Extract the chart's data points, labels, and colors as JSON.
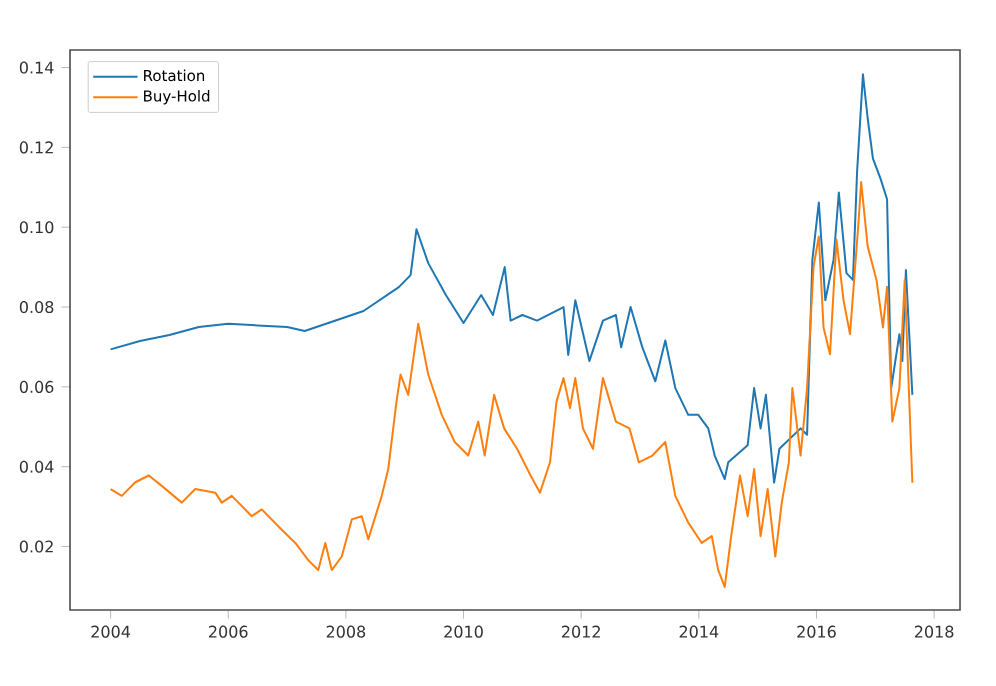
{
  "chart_data": {
    "type": "line",
    "xlim": [
      2003.31,
      2018.44
    ],
    "ylim": [
      0.0041,
      0.1444
    ],
    "xticks": [
      2004,
      2006,
      2008,
      2010,
      2012,
      2014,
      2016,
      2018
    ],
    "yticks": [
      0.02,
      0.04,
      0.06,
      0.08,
      {
        "value": 0.1,
        "label": "0.10"
      },
      0.12,
      0.14
    ],
    "legend": "top left",
    "grid": false,
    "series": [
      {
        "name": "Rotation",
        "color": "#1f77b4",
        "x": [
          2004.0,
          2004.5,
          2005.0,
          2005.5,
          2006.0,
          2006.5,
          2007.0,
          2007.3,
          2008.0,
          2008.3,
          2008.9,
          2009.1,
          2009.2,
          2009.4,
          2009.7,
          2010.0,
          2010.3,
          2010.5,
          2010.7,
          2010.8,
          2011.0,
          2011.25,
          2011.7,
          2011.78,
          2011.9,
          2012.14,
          2012.37,
          2012.59,
          2012.68,
          2012.84,
          2013.04,
          2013.26,
          2013.43,
          2013.6,
          2013.82,
          2013.99,
          2014.16,
          2014.27,
          2014.44,
          2014.5,
          2014.83,
          2014.94,
          2015.05,
          2015.14,
          2015.28,
          2015.37,
          2015.73,
          2015.84,
          2015.93,
          2016.04,
          2016.15,
          2016.29,
          2016.38,
          2016.51,
          2016.62,
          2016.69,
          2016.79,
          2016.87,
          2016.96,
          2017.09,
          2017.2,
          2017.27,
          2017.41,
          2017.46,
          2017.52,
          2017.63
        ],
        "values": [
          0.0694,
          0.0715,
          0.073,
          0.075,
          0.0758,
          0.0754,
          0.075,
          0.074,
          0.0775,
          0.079,
          0.085,
          0.088,
          0.0995,
          0.091,
          0.083,
          0.076,
          0.083,
          0.078,
          0.09,
          0.0766,
          0.078,
          0.0766,
          0.08,
          0.068,
          0.0817,
          0.0665,
          0.0766,
          0.078,
          0.0699,
          0.08,
          0.0699,
          0.0614,
          0.0716,
          0.0597,
          0.053,
          0.053,
          0.0496,
          0.0428,
          0.0369,
          0.0411,
          0.0454,
          0.0597,
          0.0496,
          0.058,
          0.036,
          0.0445,
          0.0496,
          0.048,
          0.0918,
          0.1062,
          0.0817,
          0.0918,
          0.1087,
          0.0885,
          0.0868,
          0.1138,
          0.1383,
          0.1273,
          0.1172,
          0.1121,
          0.107,
          0.0597,
          0.0732,
          0.0665,
          0.0893,
          0.058
        ]
      },
      {
        "name": "Buy-Hold",
        "color": "#ff7f0e",
        "x": [
          2004.0,
          2004.19,
          2004.42,
          2004.65,
          2004.87,
          2005.21,
          2005.44,
          2005.78,
          2005.89,
          2006.06,
          2006.4,
          2006.57,
          2006.91,
          2007.14,
          2007.36,
          2007.53,
          2007.65,
          2007.76,
          2007.93,
          2008.1,
          2008.27,
          2008.38,
          2008.61,
          2008.72,
          2008.86,
          2008.93,
          2009.06,
          2009.23,
          2009.4,
          2009.63,
          2009.85,
          2010.08,
          2010.25,
          2010.36,
          2010.52,
          2010.69,
          2010.91,
          2011.14,
          2011.3,
          2011.47,
          2011.58,
          2011.7,
          2011.81,
          2011.9,
          2012.03,
          2012.2,
          2012.37,
          2012.59,
          2012.82,
          2012.98,
          2013.21,
          2013.43,
          2013.6,
          2013.82,
          2014.05,
          2014.22,
          2014.33,
          2014.44,
          2014.55,
          2014.7,
          2014.83,
          2014.94,
          2015.05,
          2015.17,
          2015.3,
          2015.41,
          2015.53,
          2015.59,
          2015.73,
          2015.84,
          2015.95,
          2016.04,
          2016.12,
          2016.23,
          2016.34,
          2016.46,
          2016.57,
          2016.71,
          2016.76,
          2016.87,
          2017.02,
          2017.13,
          2017.2,
          2017.29,
          2017.41,
          2017.5,
          2017.63
        ],
        "values": [
          0.0344,
          0.0327,
          0.0361,
          0.0378,
          0.0352,
          0.031,
          0.0344,
          0.0335,
          0.031,
          0.0327,
          0.0276,
          0.0293,
          0.0242,
          0.0209,
          0.0166,
          0.0141,
          0.0209,
          0.0141,
          0.0175,
          0.0268,
          0.0276,
          0.0218,
          0.0327,
          0.0394,
          0.0563,
          0.0631,
          0.058,
          0.0758,
          0.0631,
          0.053,
          0.0462,
          0.0428,
          0.0513,
          0.0428,
          0.058,
          0.0496,
          0.0445,
          0.0378,
          0.0335,
          0.0411,
          0.0563,
          0.0622,
          0.0547,
          0.0622,
          0.0496,
          0.0445,
          0.0622,
          0.0513,
          0.0496,
          0.0411,
          0.0428,
          0.0462,
          0.0327,
          0.026,
          0.0209,
          0.0226,
          0.0141,
          0.0099,
          0.0226,
          0.0378,
          0.0276,
          0.0394,
          0.0226,
          0.0344,
          0.0175,
          0.031,
          0.0411,
          0.0597,
          0.0428,
          0.0597,
          0.0901,
          0.0977,
          0.0749,
          0.0682,
          0.0969,
          0.0817,
          0.0732,
          0.1003,
          0.1113,
          0.0952,
          0.0868,
          0.0749,
          0.0851,
          0.0513,
          0.0597,
          0.0868,
          0.036
        ]
      }
    ]
  }
}
